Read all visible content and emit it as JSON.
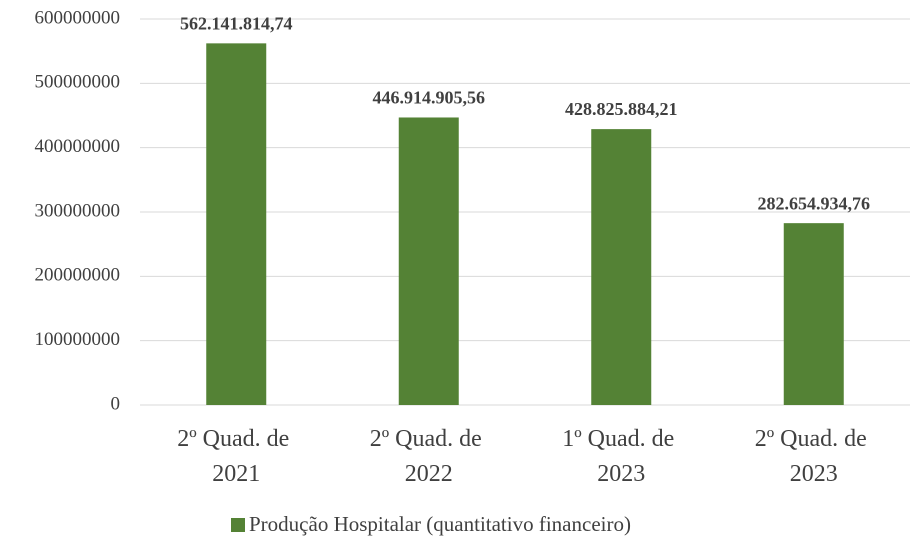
{
  "chart_data": {
    "type": "bar",
    "categories": [
      "2º Quad. de 2021",
      "2º Quad. de 2022",
      "1º Quad. de 2023",
      "2º Quad. de 2023"
    ],
    "series": [
      {
        "name": "Produção Hospitalar (quantitativo financeiro)",
        "color": "#548235",
        "values": [
          562141814.74,
          446914905.56,
          428825884.21,
          282654934.76
        ],
        "value_labels": [
          "562.141.814,74",
          "446.914.905,56",
          "428.825.884,21",
          "282.654.934,76"
        ]
      }
    ],
    "ylim": [
      0,
      600000000
    ],
    "yticks": [
      0,
      100000000,
      200000000,
      300000000,
      400000000,
      500000000,
      600000000
    ],
    "grid": true,
    "legend": "bottom"
  }
}
